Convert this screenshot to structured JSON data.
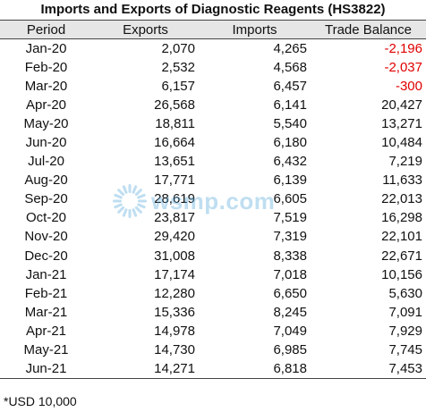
{
  "title": "Imports and Exports of Diagnostic Reagents (HS3822)",
  "columns": [
    "Period",
    "Exports",
    "Imports",
    "Trade Balance"
  ],
  "rows": [
    {
      "period": "Jan-20",
      "exports": "2,070",
      "imports": "4,265",
      "balance": "-2,196",
      "negative": true
    },
    {
      "period": "Feb-20",
      "exports": "2,532",
      "imports": "4,568",
      "balance": "-2,037",
      "negative": true
    },
    {
      "period": "Mar-20",
      "exports": "6,157",
      "imports": "6,457",
      "balance": "-300",
      "negative": true
    },
    {
      "period": "Apr-20",
      "exports": "26,568",
      "imports": "6,141",
      "balance": "20,427",
      "negative": false
    },
    {
      "period": "May-20",
      "exports": "18,811",
      "imports": "5,540",
      "balance": "13,271",
      "negative": false
    },
    {
      "period": "Jun-20",
      "exports": "16,664",
      "imports": "6,180",
      "balance": "10,484",
      "negative": false
    },
    {
      "period": "Jul-20",
      "exports": "13,651",
      "imports": "6,432",
      "balance": "7,219",
      "negative": false
    },
    {
      "period": "Aug-20",
      "exports": "17,771",
      "imports": "6,139",
      "balance": "11,633",
      "negative": false
    },
    {
      "period": "Sep-20",
      "exports": "28,619",
      "imports": "6,605",
      "balance": "22,013",
      "negative": false
    },
    {
      "period": "Oct-20",
      "exports": "23,817",
      "imports": "7,519",
      "balance": "16,298",
      "negative": false
    },
    {
      "period": "Nov-20",
      "exports": "29,420",
      "imports": "7,319",
      "balance": "22,101",
      "negative": false
    },
    {
      "period": "Dec-20",
      "exports": "31,008",
      "imports": "8,338",
      "balance": "22,671",
      "negative": false
    },
    {
      "period": "Jan-21",
      "exports": "17,174",
      "imports": "7,018",
      "balance": "10,156",
      "negative": false
    },
    {
      "period": "Feb-21",
      "exports": "12,280",
      "imports": "6,650",
      "balance": "5,630",
      "negative": false
    },
    {
      "period": "Mar-21",
      "exports": "15,336",
      "imports": "8,245",
      "balance": "7,091",
      "negative": false
    },
    {
      "period": "Apr-21",
      "exports": "14,978",
      "imports": "7,049",
      "balance": "7,929",
      "negative": false
    },
    {
      "period": "May-21",
      "exports": "14,730",
      "imports": "6,985",
      "balance": "7,745",
      "negative": false
    },
    {
      "period": "Jun-21",
      "exports": "14,271",
      "imports": "6,818",
      "balance": "7,453",
      "negative": false
    }
  ],
  "note": "*USD 10,000",
  "watermark": {
    "text": "wsmp.com",
    "icon": "sunburst-logo-icon"
  },
  "colors": {
    "negative": "#e00000",
    "header_bg": "#e6e6e6",
    "watermark": "#4aa3d8"
  }
}
